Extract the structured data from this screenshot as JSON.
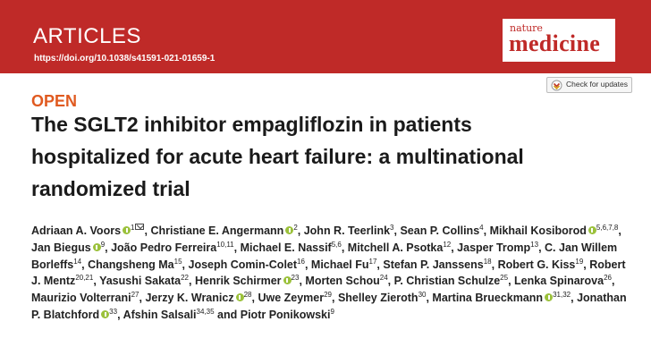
{
  "header": {
    "section": "ARTICLES",
    "doi": "https://doi.org/10.1038/s41591-021-01659-1",
    "journal_top": "nature",
    "journal_bottom": "medicine",
    "banner_color": "#bf2a28"
  },
  "check_updates": {
    "label": "Check for updates",
    "icon": "check-for-updates-icon"
  },
  "open_label": "OPEN",
  "title": "The SGLT2 inhibitor empagliflozin in patients hospitalized for acute heart failure: a multinational randomized trial",
  "authors": [
    {
      "name": "Adriaan A. Voors",
      "orcid": true,
      "sup": "1",
      "email": true
    },
    {
      "name": "Christiane E. Angermann",
      "orcid": true,
      "sup": "2"
    },
    {
      "name": "John R. Teerlink",
      "sup": "3"
    },
    {
      "name": "Sean P. Collins",
      "sup": "4"
    },
    {
      "name": "Mikhail Kosiborod",
      "orcid": true,
      "sup": "5,6,7,8"
    },
    {
      "name": "Jan Biegus",
      "orcid": true,
      "sup": "9"
    },
    {
      "name": "João Pedro Ferreira",
      "sup": "10,11"
    },
    {
      "name": "Michael E. Nassif",
      "sup": "5,6"
    },
    {
      "name": "Mitchell A. Psotka",
      "sup": "12"
    },
    {
      "name": "Jasper Tromp",
      "sup": "13"
    },
    {
      "name": "C. Jan Willem Borleffs",
      "sup": "14"
    },
    {
      "name": "Changsheng Ma",
      "sup": "15"
    },
    {
      "name": "Joseph Comin-Colet",
      "sup": "16"
    },
    {
      "name": "Michael Fu",
      "sup": "17"
    },
    {
      "name": "Stefan P. Janssens",
      "sup": "18"
    },
    {
      "name": "Robert G. Kiss",
      "sup": "19"
    },
    {
      "name": "Robert J. Mentz",
      "sup": "20,21"
    },
    {
      "name": "Yasushi Sakata",
      "sup": "22"
    },
    {
      "name": "Henrik Schirmer",
      "orcid": true,
      "sup": "23"
    },
    {
      "name": "Morten Schou",
      "sup": "24"
    },
    {
      "name": "P. Christian Schulze",
      "sup": "25"
    },
    {
      "name": "Lenka Spinarova",
      "sup": "26"
    },
    {
      "name": "Maurizio Volterrani",
      "sup": "27"
    },
    {
      "name": "Jerzy K. Wranicz",
      "orcid": true,
      "sup": "28"
    },
    {
      "name": "Uwe Zeymer",
      "sup": "29"
    },
    {
      "name": "Shelley Zieroth",
      "sup": "30"
    },
    {
      "name": "Martina Brueckmann",
      "orcid": true,
      "sup": "31,32"
    },
    {
      "name": "Jonathan P. Blatchford",
      "orcid": true,
      "sup": "33"
    },
    {
      "name": "Afshin Salsali",
      "sup": "34,35"
    },
    {
      "name": "Piotr Ponikowski",
      "sup": "9",
      "prefix": "and"
    }
  ]
}
